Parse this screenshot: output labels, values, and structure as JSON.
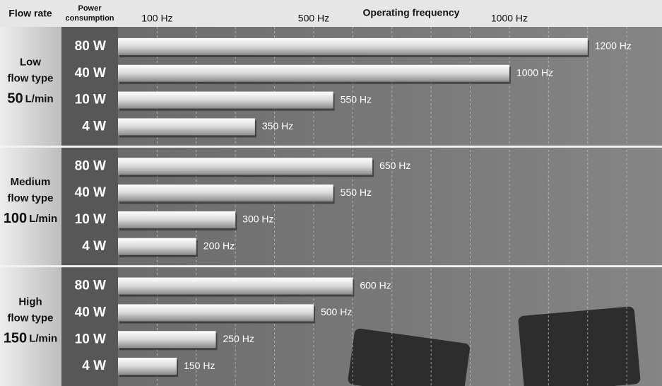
{
  "header": {
    "flow_rate": "Flow rate",
    "power_line1": "Power",
    "power_line2": "consumption"
  },
  "chart_data": {
    "type": "bar",
    "orientation": "horizontal",
    "x_label": "Operating frequency",
    "xlim": [
      0,
      1390
    ],
    "xticks": [
      {
        "value": 100,
        "label": "100 Hz"
      },
      {
        "value": 500,
        "label": "500 Hz"
      },
      {
        "value": 1000,
        "label": "1000 Hz"
      }
    ],
    "x_minor_ticks": [
      200,
      300,
      400,
      600,
      700,
      800,
      900,
      1100,
      1200,
      1300
    ],
    "grid": true,
    "groups": [
      {
        "name_lines": [
          "Low",
          "flow type"
        ],
        "flow": "50",
        "unit": "L/min",
        "categories": [
          "80 W",
          "40 W",
          "10 W",
          "4 W"
        ],
        "values": [
          1200,
          1000,
          550,
          350
        ],
        "value_labels": [
          "1200 Hz",
          "1000 Hz",
          "550 Hz",
          "350 Hz"
        ]
      },
      {
        "name_lines": [
          "Medium",
          "flow type"
        ],
        "flow": "100",
        "unit": "L/min",
        "categories": [
          "80 W",
          "40 W",
          "10 W",
          "4 W"
        ],
        "values": [
          650,
          550,
          300,
          200
        ],
        "value_labels": [
          "650 Hz",
          "550 Hz",
          "300 Hz",
          "200 Hz"
        ]
      },
      {
        "name_lines": [
          "High",
          "flow type"
        ],
        "flow": "150",
        "unit": "L/min",
        "categories": [
          "80 W",
          "40 W",
          "10 W",
          "4 W"
        ],
        "values": [
          600,
          500,
          250,
          150
        ],
        "value_labels": [
          "600 Hz",
          "500 Hz",
          "250 Hz",
          "150 Hz"
        ]
      }
    ]
  }
}
